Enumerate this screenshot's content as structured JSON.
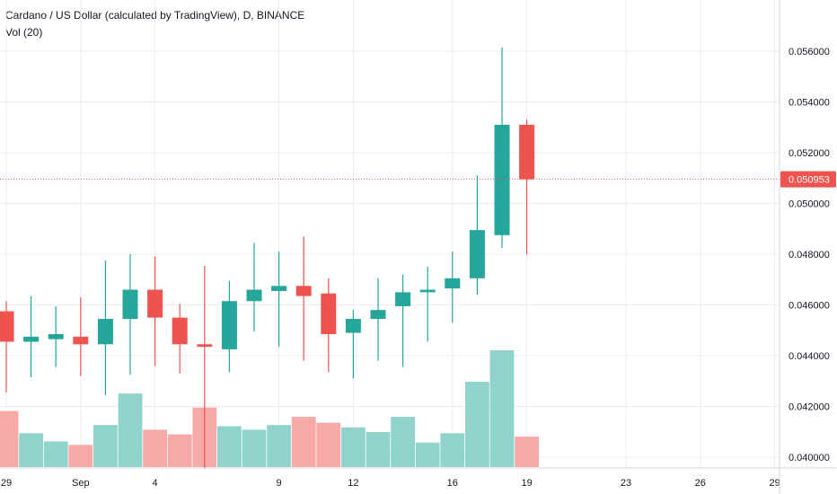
{
  "legend": {
    "title": "Cardano / US Dollar (calculated by TradingView), D, BINANCE",
    "volume": "Vol (20)"
  },
  "colors": {
    "up": "#26a69a",
    "down": "#ef5350",
    "volume_up": "#8fd3cc",
    "volume_down": "#f7a9a7",
    "grid": "#e9edf2",
    "price_line": "#ef5350"
  },
  "chart_data": {
    "type": "candlestick",
    "y_ticks": [
      "0.040000",
      "0.042000",
      "0.044000",
      "0.046000",
      "0.048000",
      "0.050000",
      "0.052000",
      "0.054000",
      "0.056000"
    ],
    "x_ticks": [
      "29",
      "Sep",
      "4",
      "9",
      "12",
      "16",
      "19",
      "23",
      "26",
      "29"
    ],
    "ylim": [
      0.0395,
      0.0575
    ],
    "last_price": "0.050953",
    "candles": [
      {
        "date": "2019-08-29",
        "open": 0.04575,
        "high": 0.04615,
        "low": 0.04255,
        "close": 0.04455,
        "volume": 0.48
      },
      {
        "date": "2019-08-30",
        "open": 0.04455,
        "high": 0.04635,
        "low": 0.04315,
        "close": 0.04475,
        "volume": 0.29
      },
      {
        "date": "2019-08-31",
        "open": 0.04465,
        "high": 0.04595,
        "low": 0.04355,
        "close": 0.04485,
        "volume": 0.22
      },
      {
        "date": "2019-09-01",
        "open": 0.04475,
        "high": 0.0463,
        "low": 0.0432,
        "close": 0.04445,
        "volume": 0.19
      },
      {
        "date": "2019-09-02",
        "open": 0.04445,
        "high": 0.04775,
        "low": 0.04245,
        "close": 0.04545,
        "volume": 0.36
      },
      {
        "date": "2019-09-03",
        "open": 0.04545,
        "high": 0.048,
        "low": 0.04325,
        "close": 0.0466,
        "volume": 0.63
      },
      {
        "date": "2019-09-04",
        "open": 0.0466,
        "high": 0.0479,
        "low": 0.0436,
        "close": 0.0455,
        "volume": 0.32
      },
      {
        "date": "2019-09-05",
        "open": 0.0455,
        "high": 0.04605,
        "low": 0.0433,
        "close": 0.04445,
        "volume": 0.28
      },
      {
        "date": "2019-09-06",
        "open": 0.04445,
        "high": 0.04755,
        "low": 0.03955,
        "close": 0.04435,
        "volume": 0.51
      },
      {
        "date": "2019-09-07",
        "open": 0.04425,
        "high": 0.04695,
        "low": 0.04335,
        "close": 0.04615,
        "volume": 0.35
      },
      {
        "date": "2019-09-08",
        "open": 0.04615,
        "high": 0.04845,
        "low": 0.04495,
        "close": 0.0466,
        "volume": 0.32
      },
      {
        "date": "2019-09-09",
        "open": 0.04655,
        "high": 0.0481,
        "low": 0.04435,
        "close": 0.04675,
        "volume": 0.36
      },
      {
        "date": "2019-09-10",
        "open": 0.04675,
        "high": 0.0487,
        "low": 0.0438,
        "close": 0.04635,
        "volume": 0.43
      },
      {
        "date": "2019-09-11",
        "open": 0.04645,
        "high": 0.04705,
        "low": 0.04335,
        "close": 0.04485,
        "volume": 0.38
      },
      {
        "date": "2019-09-12",
        "open": 0.0449,
        "high": 0.0458,
        "low": 0.0431,
        "close": 0.04545,
        "volume": 0.34
      },
      {
        "date": "2019-09-13",
        "open": 0.04545,
        "high": 0.04705,
        "low": 0.0438,
        "close": 0.0458,
        "volume": 0.3
      },
      {
        "date": "2019-09-14",
        "open": 0.04595,
        "high": 0.0472,
        "low": 0.04355,
        "close": 0.0465,
        "volume": 0.43
      },
      {
        "date": "2019-09-15",
        "open": 0.0465,
        "high": 0.0475,
        "low": 0.04455,
        "close": 0.0466,
        "volume": 0.21
      },
      {
        "date": "2019-09-16",
        "open": 0.04665,
        "high": 0.0481,
        "low": 0.0453,
        "close": 0.04705,
        "volume": 0.29
      },
      {
        "date": "2019-09-17",
        "open": 0.04705,
        "high": 0.0511,
        "low": 0.0464,
        "close": 0.04895,
        "volume": 0.73
      },
      {
        "date": "2019-09-18",
        "open": 0.04875,
        "high": 0.05615,
        "low": 0.04825,
        "close": 0.0531,
        "volume": 1.0
      },
      {
        "date": "2019-09-19",
        "open": 0.0531,
        "high": 0.0533,
        "low": 0.048,
        "close": 0.05095,
        "volume": 0.26
      }
    ]
  }
}
